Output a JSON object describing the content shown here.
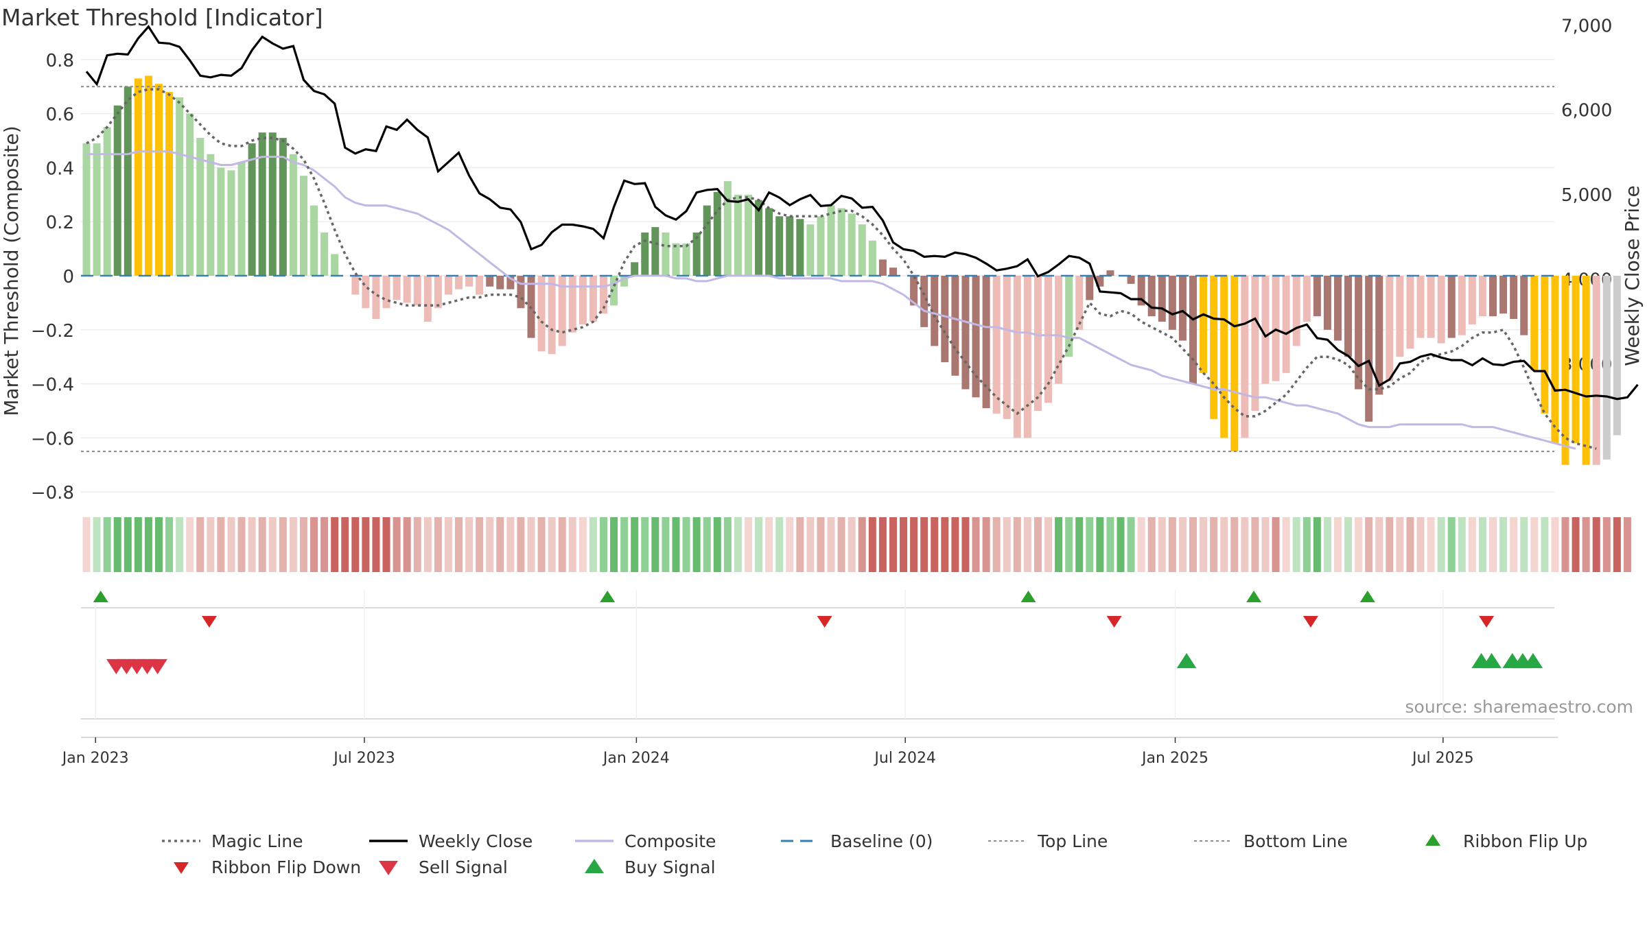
{
  "chart_data": {
    "type": "bar",
    "title": "Market Threshold [Indicator]",
    "ylabel_left": "Market Threshold (Composite)",
    "ylabel_right": "Weekly Close Price",
    "source": "source: sharemaestro.com",
    "ylim": [
      -0.85,
      0.82
    ],
    "y_ticks": [
      0.8,
      0.6,
      0.4,
      0.2,
      0,
      -0.2,
      -0.4,
      -0.6,
      -0.8
    ],
    "y_tick_labels": [
      "0.8",
      "0.6",
      "0.4",
      "0.2",
      "0",
      "−0.2",
      "−0.4",
      "−0.6",
      "−0.8"
    ],
    "y2lim": [
      2330,
      7430
    ],
    "y2_ticks": [
      7000,
      6000,
      5000,
      4000,
      3000
    ],
    "y2_tick_labels": [
      "7,000",
      "6,000",
      "5,000",
      "4,000",
      "3,000"
    ],
    "x_ticks": [
      {
        "label": "Jan 2023",
        "week": 1
      },
      {
        "label": "Jul 2023",
        "week": 27
      },
      {
        "label": "Jan 2024",
        "week": 53.3
      },
      {
        "label": "Jul 2024",
        "week": 79.3
      },
      {
        "label": "Jan 2025",
        "week": 105.4
      },
      {
        "label": "Jul 2025",
        "week": 131.3
      }
    ],
    "top_line": 0.7,
    "bottom_line": -0.65,
    "weeks": 145,
    "bars": [
      0.49,
      0.49,
      0.55,
      0.63,
      0.7,
      0.73,
      0.74,
      0.71,
      0.68,
      0.66,
      0.6,
      0.51,
      0.45,
      0.4,
      0.39,
      0.42,
      0.49,
      0.53,
      0.53,
      0.51,
      0.45,
      0.37,
      0.26,
      0.16,
      0.08,
      0,
      -0.07,
      -0.12,
      -0.16,
      -0.12,
      -0.09,
      -0.1,
      -0.11,
      -0.17,
      -0.12,
      -0.07,
      -0.05,
      -0.04,
      -0.07,
      -0.04,
      -0.05,
      -0.05,
      -0.12,
      -0.23,
      -0.28,
      -0.29,
      -0.26,
      -0.21,
      -0.18,
      -0.17,
      -0.14,
      -0.11,
      -0.04,
      0.05,
      0.16,
      0.18,
      0.16,
      0.12,
      0.12,
      0.16,
      0.26,
      0.31,
      0.35,
      0.3,
      0.3,
      0.28,
      0.25,
      0.22,
      0.22,
      0.21,
      0.19,
      0.22,
      0.26,
      0.25,
      0.23,
      0.19,
      0.13,
      0.06,
      0.03,
      0,
      -0.11,
      -0.19,
      -0.26,
      -0.32,
      -0.37,
      -0.42,
      -0.45,
      -0.49,
      -0.51,
      -0.53,
      -0.6,
      -0.6,
      -0.5,
      -0.47,
      -0.4,
      -0.3,
      -0.2,
      -0.09,
      -0.04,
      0.02,
      0,
      -0.03,
      -0.11,
      -0.15,
      -0.17,
      -0.2,
      -0.24,
      -0.4,
      -0.36,
      -0.53,
      -0.6,
      -0.65,
      -0.6,
      -0.5,
      -0.4,
      -0.39,
      -0.36,
      -0.26,
      -0.17,
      -0.15,
      -0.2,
      -0.24,
      -0.3,
      -0.42,
      -0.54,
      -0.44,
      -0.39,
      -0.3,
      -0.27,
      -0.23,
      -0.23,
      -0.25,
      -0.23,
      -0.22,
      -0.18,
      -0.15,
      -0.15,
      -0.14,
      -0.16,
      -0.22,
      -0.35,
      -0.51,
      -0.62,
      -0.7,
      -0.62,
      -0.7,
      -0.7,
      -0.68,
      -0.59
    ],
    "bar_color_codes": "lllddyyyylllllllddddlllllnnnnnnnnnnnnnnmmmmmnnnnnnnlldddllldddllldddddlllllllmmmmmmmmmmmnnnnnnnlnmmmmmmmmmmmyyyynnnnnnnmmmmmmmnnnnnnmnnnmmmmyyyyyyn",
    "ribbon_color_codes": "ABCDDDDDCBAFEFEFEFEFEFGGHHHHHHGGFEFEFEFEFEFEFEFEABCDCDCDCDCDCDCBABABAFEFEFEGHHHHHHHHHHGGFEFEFEDCDCDCDCAFEFEFEFEFEFEGABCDBABAFEFEFEABCBABABABABAGHGHGHG",
    "magic_line": [
      0.49,
      0.51,
      0.55,
      0.6,
      0.65,
      0.68,
      0.69,
      0.69,
      0.67,
      0.64,
      0.6,
      0.56,
      0.52,
      0.49,
      0.48,
      0.48,
      0.5,
      0.51,
      0.51,
      0.5,
      0.47,
      0.43,
      0.36,
      0.27,
      0.17,
      0.08,
      0.01,
      -0.04,
      -0.07,
      -0.09,
      -0.1,
      -0.11,
      -0.11,
      -0.11,
      -0.11,
      -0.1,
      -0.09,
      -0.08,
      -0.08,
      -0.07,
      -0.07,
      -0.07,
      -0.08,
      -0.12,
      -0.17,
      -0.2,
      -0.21,
      -0.2,
      -0.19,
      -0.17,
      -0.12,
      -0.04,
      0.05,
      0.11,
      0.13,
      0.12,
      0.11,
      0.11,
      0.11,
      0.14,
      0.19,
      0.24,
      0.28,
      0.29,
      0.29,
      0.28,
      0.25,
      0.23,
      0.22,
      0.22,
      0.22,
      0.22,
      0.23,
      0.24,
      0.24,
      0.22,
      0.19,
      0.15,
      0.1,
      0.06,
      0,
      -0.07,
      -0.15,
      -0.21,
      -0.27,
      -0.32,
      -0.37,
      -0.41,
      -0.45,
      -0.48,
      -0.51,
      -0.48,
      -0.45,
      -0.4,
      -0.33,
      -0.26,
      -0.18,
      -0.1,
      -0.14,
      -0.15,
      -0.13,
      -0.14,
      -0.17,
      -0.19,
      -0.21,
      -0.23,
      -0.27,
      -0.31,
      -0.36,
      -0.4,
      -0.45,
      -0.49,
      -0.52,
      -0.52,
      -0.5,
      -0.47,
      -0.44,
      -0.39,
      -0.34,
      -0.3,
      -0.3,
      -0.31,
      -0.33,
      -0.38,
      -0.42,
      -0.42,
      -0.41,
      -0.38,
      -0.36,
      -0.32,
      -0.3,
      -0.29,
      -0.28,
      -0.26,
      -0.23,
      -0.21,
      -0.21,
      -0.2,
      -0.26,
      -0.34,
      -0.43,
      -0.51,
      -0.56,
      -0.6,
      -0.62,
      -0.63,
      -0.64
    ],
    "composite": [
      0.45,
      0.45,
      0.45,
      0.45,
      0.45,
      0.46,
      0.46,
      0.46,
      0.46,
      0.45,
      0.44,
      0.43,
      0.42,
      0.41,
      0.41,
      0.42,
      0.43,
      0.44,
      0.44,
      0.44,
      0.42,
      0.41,
      0.39,
      0.36,
      0.33,
      0.29,
      0.27,
      0.26,
      0.26,
      0.26,
      0.25,
      0.24,
      0.23,
      0.21,
      0.19,
      0.17,
      0.14,
      0.11,
      0.08,
      0.05,
      0.02,
      -0.01,
      -0.03,
      -0.03,
      -0.03,
      -0.03,
      -0.04,
      -0.04,
      -0.04,
      -0.04,
      -0.04,
      -0.03,
      -0.01,
      0,
      0,
      0,
      0,
      -0.01,
      -0.01,
      -0.02,
      -0.02,
      -0.01,
      0,
      0,
      0,
      0,
      0,
      -0.01,
      -0.01,
      -0.01,
      -0.01,
      -0.01,
      -0.01,
      -0.02,
      -0.02,
      -0.02,
      -0.02,
      -0.03,
      -0.05,
      -0.07,
      -0.1,
      -0.13,
      -0.14,
      -0.15,
      -0.16,
      -0.17,
      -0.18,
      -0.19,
      -0.19,
      -0.2,
      -0.21,
      -0.21,
      -0.22,
      -0.22,
      -0.22,
      -0.23,
      -0.23,
      -0.25,
      -0.27,
      -0.29,
      -0.31,
      -0.33,
      -0.34,
      -0.35,
      -0.37,
      -0.38,
      -0.39,
      -0.4,
      -0.41,
      -0.42,
      -0.42,
      -0.43,
      -0.44,
      -0.45,
      -0.45,
      -0.46,
      -0.47,
      -0.48,
      -0.48,
      -0.49,
      -0.5,
      -0.51,
      -0.53,
      -0.55,
      -0.56,
      -0.56,
      -0.56,
      -0.55,
      -0.55,
      -0.55,
      -0.55,
      -0.55,
      -0.55,
      -0.55,
      -0.56,
      -0.56,
      -0.56,
      -0.57,
      -0.58,
      -0.59,
      -0.6,
      -0.61,
      -0.62,
      -0.63,
      -0.64
    ],
    "weekly_close": [
      6450,
      6300,
      6640,
      6660,
      6650,
      6840,
      6980,
      6790,
      6780,
      6740,
      6580,
      6400,
      6380,
      6410,
      6400,
      6490,
      6700,
      6860,
      6780,
      6720,
      6750,
      6350,
      6220,
      6180,
      6070,
      5550,
      5480,
      5530,
      5510,
      5800,
      5760,
      5880,
      5760,
      5670,
      5270,
      5380,
      5490,
      5220,
      5010,
      4940,
      4840,
      4820,
      4670,
      4350,
      4400,
      4550,
      4640,
      4640,
      4620,
      4590,
      4480,
      4850,
      5160,
      5120,
      5130,
      4850,
      4750,
      4700,
      4800,
      5020,
      5050,
      5060,
      4920,
      4910,
      4940,
      4810,
      5020,
      4960,
      4870,
      4940,
      4990,
      4860,
      4870,
      4980,
      4950,
      4840,
      4850,
      4690,
      4430,
      4350,
      4330,
      4260,
      4270,
      4260,
      4310,
      4290,
      4250,
      4180,
      4100,
      4120,
      4150,
      4230,
      4030,
      4080,
      4170,
      4270,
      4250,
      4180,
      3850,
      3840,
      3830,
      3760,
      3760,
      3660,
      3650,
      3580,
      3620,
      3520,
      3580,
      3530,
      3520,
      3440,
      3470,
      3530,
      3320,
      3400,
      3350,
      3420,
      3460,
      3300,
      3280,
      3160,
      3090,
      2970,
      3030,
      2740,
      2810,
      3000,
      3020,
      3080,
      3110,
      3070,
      3040,
      3040,
      2980,
      3060,
      2990,
      2980,
      3020,
      3030,
      2910,
      2910,
      2680,
      2690,
      2650,
      2610,
      2620,
      2610,
      2580,
      2600,
      2750
    ],
    "ribbon_flip_up_weeks": [
      1.5,
      50.5,
      91.2,
      113,
      124
    ],
    "ribbon_flip_down_weeks": [
      12,
      71.5,
      99.5,
      118.5,
      135.5
    ],
    "sell_signal_weeks": [
      3,
      4,
      5,
      6,
      7
    ],
    "buy_signal_weeks": [
      106.5,
      135,
      136,
      138,
      139,
      140
    ],
    "legend": [
      {
        "label": "Magic Line",
        "symbol": "dotted",
        "color": "#6b6b6b"
      },
      {
        "label": "Weekly Close",
        "symbol": "solid",
        "color": "#000000"
      },
      {
        "label": "Composite",
        "symbol": "solid",
        "color": "#c2b8e6"
      },
      {
        "label": "Baseline (0)",
        "symbol": "dashed",
        "color": "#3a7fb2"
      },
      {
        "label": "Top Line",
        "symbol": "thin-dotted",
        "color": "#8c8c8c"
      },
      {
        "label": "Bottom Line",
        "symbol": "thin-dotted",
        "color": "#8c8c8c"
      },
      {
        "label": "Ribbon Flip Up",
        "symbol": "triangle-up-small",
        "color": "#2ca02c"
      },
      {
        "label": "Ribbon Flip Down",
        "symbol": "triangle-down-small",
        "color": "#d62728"
      },
      {
        "label": "Sell Signal",
        "symbol": "triangle-down",
        "color": "#dc3545"
      },
      {
        "label": "Buy Signal",
        "symbol": "triangle-up",
        "color": "#28a745"
      }
    ],
    "colors": {
      "l": "#a9d6a1",
      "d": "#62955a",
      "y": "#ffc107",
      "n": "#eebcb7",
      "m": "#a97670",
      "A": "#f5d5d2",
      "B": "#bfe3c0",
      "C": "#8fd096",
      "D": "#66bb6e",
      "E": "#eecac6",
      "F": "#e3b2ad",
      "G": "#d89490",
      "H": "#c9635f",
      "grid": "#ececec",
      "panel_line": "#d9d9d9"
    }
  }
}
